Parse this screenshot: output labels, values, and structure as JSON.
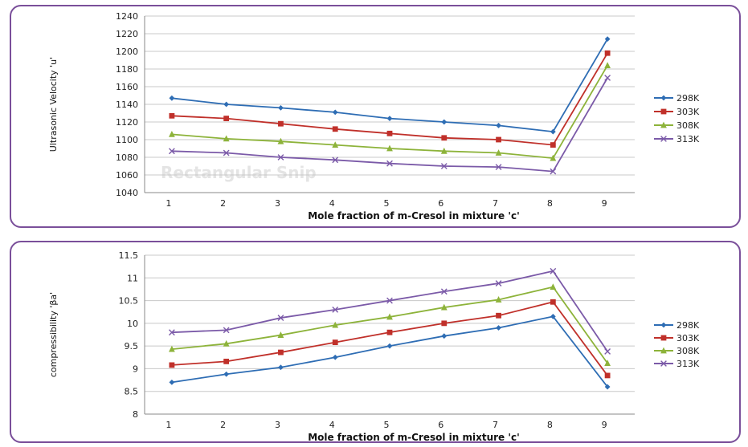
{
  "colors": {
    "frame": "#7a4f9a",
    "s298": "#2e6db4",
    "s303": "#c0302a",
    "s308": "#8db33a",
    "s313": "#7b5aa8",
    "grid": "#c8c8c8"
  },
  "watermark": "Rectangular Snip",
  "chart_data": [
    {
      "type": "line",
      "xlabel": "Mole fraction of m-Cresol in mixture 'c'",
      "ylabel": "Ultrasonic Velocity 'u'",
      "categories": [
        "1",
        "2",
        "3",
        "4",
        "5",
        "6",
        "7",
        "8",
        "9"
      ],
      "ylim": [
        1040,
        1240
      ],
      "yticks": [
        "1040",
        "1060",
        "1080",
        "1100",
        "1120",
        "1140",
        "1160",
        "1180",
        "1200",
        "1220",
        "1240"
      ],
      "grid": true,
      "legend_position": "right",
      "series": [
        {
          "name": "298K",
          "values": [
            1147,
            1140,
            1136,
            1131,
            1124,
            1120,
            1116,
            1109,
            1214
          ],
          "marker": "diamond",
          "color": "#2e6db4"
        },
        {
          "name": "303K",
          "values": [
            1127,
            1124,
            1118,
            1112,
            1107,
            1102,
            1100,
            1094,
            1198
          ],
          "marker": "square",
          "color": "#c0302a"
        },
        {
          "name": "308K",
          "values": [
            1106,
            1101,
            1098,
            1094,
            1090,
            1087,
            1085,
            1079,
            1184
          ],
          "marker": "triangle",
          "color": "#8db33a"
        },
        {
          "name": "313K",
          "values": [
            1087,
            1085,
            1080,
            1077,
            1073,
            1070,
            1069,
            1064,
            1170
          ],
          "marker": "x",
          "color": "#7b5aa8"
        }
      ]
    },
    {
      "type": "line",
      "xlabel": "Mole fraction of m-Cresol in mixture 'c'",
      "ylabel": "compressibility 'βa'",
      "categories": [
        "1",
        "2",
        "3",
        "4",
        "5",
        "6",
        "7",
        "8",
        "9"
      ],
      "ylim": [
        8,
        11.5
      ],
      "yticks": [
        "8",
        "8.5",
        "9",
        "9.5",
        "10",
        "10.5",
        "11",
        "11.5"
      ],
      "grid": true,
      "legend_position": "right",
      "series": [
        {
          "name": "298K",
          "values": [
            8.7,
            8.88,
            9.03,
            9.25,
            9.5,
            9.72,
            9.9,
            10.15,
            8.6
          ],
          "marker": "diamond",
          "color": "#2e6db4"
        },
        {
          "name": "303K",
          "values": [
            9.08,
            9.16,
            9.36,
            9.58,
            9.8,
            10.0,
            10.17,
            10.47,
            8.85
          ],
          "marker": "square",
          "color": "#c0302a"
        },
        {
          "name": "308K",
          "values": [
            9.43,
            9.55,
            9.74,
            9.96,
            10.14,
            10.35,
            10.52,
            10.8,
            9.12
          ],
          "marker": "triangle",
          "color": "#8db33a"
        },
        {
          "name": "313K",
          "values": [
            9.8,
            9.85,
            10.12,
            10.3,
            10.5,
            10.7,
            10.88,
            11.15,
            9.38
          ],
          "marker": "x",
          "color": "#7b5aa8"
        }
      ]
    }
  ]
}
